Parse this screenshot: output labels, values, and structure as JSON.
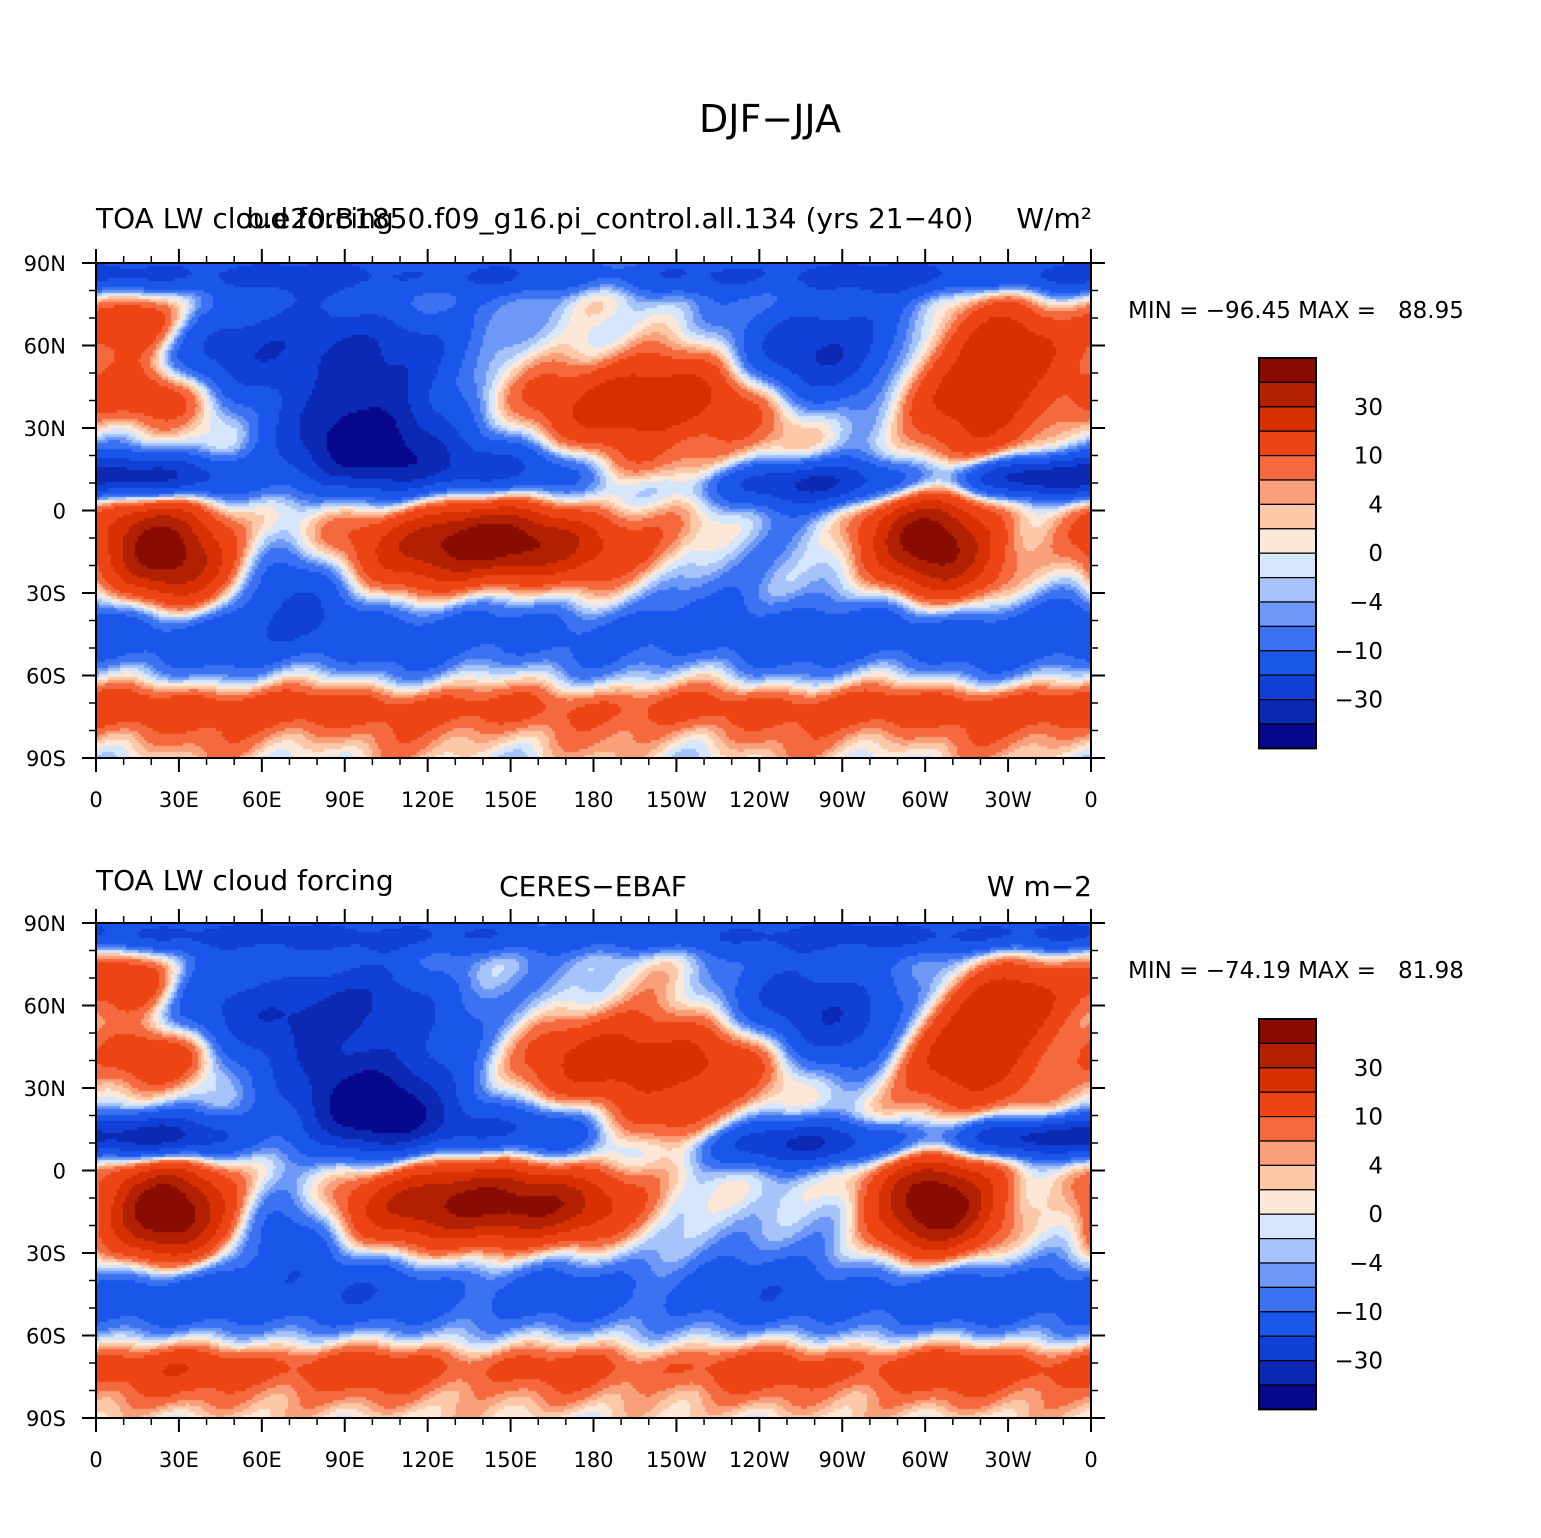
{
  "figure": {
    "title": "DJF−JJA"
  },
  "panels": [
    {
      "id": "model",
      "left_title": "TOA LW cloud forcing",
      "center_title": "b.e20.B1850.f09_g16.pi_control.all.134 (yrs 21−40)",
      "right_title": "W/m²",
      "min_max": "MIN = −96.45 MAX =   88.95",
      "texture_seed": 0.3
    },
    {
      "id": "obs",
      "left_title": "TOA LW cloud forcing",
      "center_title": "CERES−EBAF",
      "right_title": "W m−2",
      "min_max": "MIN = −74.19 MAX =   81.98",
      "texture_seed": 1.7
    }
  ],
  "axes": {
    "lat_labels": [
      "90N",
      "60N",
      "30N",
      "0",
      "30S",
      "60S",
      "90S"
    ],
    "lon_labels": [
      "0",
      "30E",
      "60E",
      "90E",
      "120E",
      "150E",
      "180",
      "150W",
      "120W",
      "90W",
      "60W",
      "30W",
      "0"
    ]
  },
  "colorbar": {
    "levels": [
      -50,
      -40,
      -30,
      -20,
      -10,
      -6,
      -4,
      -2,
      0,
      2,
      4,
      6,
      10,
      20,
      30,
      40,
      50
    ],
    "labels": [
      "30",
      "10",
      "4",
      "0",
      "−4",
      "−10",
      "−30"
    ],
    "colors": [
      "#08088c",
      "#0c29b3",
      "#1040d6",
      "#1a56ea",
      "#3a72f2",
      "#6e98f6",
      "#a6c4fa",
      "#d5e6fd",
      "#fde8d8",
      "#fcc8a8",
      "#f9a07a",
      "#f46a3e",
      "#ec4513",
      "#d63003",
      "#b02001",
      "#8a0c00"
    ]
  },
  "regions": [
    {
      "lon": 25,
      "lat": -15,
      "v": 48,
      "sx": 16,
      "sy": 14
    },
    {
      "lon": -57,
      "lat": -12,
      "v": 48,
      "sx": 16,
      "sy": 14
    },
    {
      "lon": 130,
      "lat": -12,
      "v": 40,
      "sx": 26,
      "sy": 11
    },
    {
      "lon": 170,
      "lat": -12,
      "v": 22,
      "sx": 24,
      "sy": 9
    },
    {
      "lon": -155,
      "lat": 40,
      "v": 30,
      "sx": 38,
      "sy": 12
    },
    {
      "lon": -45,
      "lat": 42,
      "v": 28,
      "sx": 22,
      "sy": 14
    },
    {
      "lon": -30,
      "lat": 62,
      "v": 24,
      "sx": 16,
      "sy": 10
    },
    {
      "lon": 20,
      "lat": 42,
      "v": 22,
      "sx": 16,
      "sy": 8
    },
    {
      "lon": 15,
      "lat": 68,
      "v": 25,
      "sx": 12,
      "sy": 9
    },
    {
      "lon": -155,
      "lat": 15,
      "v": 12,
      "sx": 22,
      "sy": 6
    },
    {
      "lon": 0,
      "lat": -72,
      "v": 16,
      "sx": 200,
      "sy": 6
    },
    {
      "lon": 0,
      "lat": -84,
      "v": 4,
      "sx": 200,
      "sy": 5
    },
    {
      "lon": 100,
      "lat": 25,
      "v": -48,
      "sx": 22,
      "sy": 13
    },
    {
      "lon": 80,
      "lat": 58,
      "v": -32,
      "sx": 42,
      "sy": 14
    },
    {
      "lon": -95,
      "lat": 55,
      "v": -34,
      "sx": 26,
      "sy": 16
    },
    {
      "lon": -100,
      "lat": 10,
      "v": -32,
      "sx": 30,
      "sy": 6
    },
    {
      "lon": 20,
      "lat": 12,
      "v": -38,
      "sx": 24,
      "sy": 6
    },
    {
      "lon": -25,
      "lat": 12,
      "v": -30,
      "sx": 18,
      "sy": 5
    },
    {
      "lon": 150,
      "lat": 14,
      "v": -22,
      "sx": 30,
      "sy": 7
    },
    {
      "lon": 0,
      "lat": -45,
      "v": -18,
      "sx": 200,
      "sy": 10
    },
    {
      "lon": 0,
      "lat": 86,
      "v": -22,
      "sx": 200,
      "sy": 5
    },
    {
      "lon": 70,
      "lat": -25,
      "v": -14,
      "sx": 14,
      "sy": 12
    },
    {
      "lon": -120,
      "lat": -20,
      "v": -6,
      "sx": 20,
      "sy": 10
    }
  ]
}
